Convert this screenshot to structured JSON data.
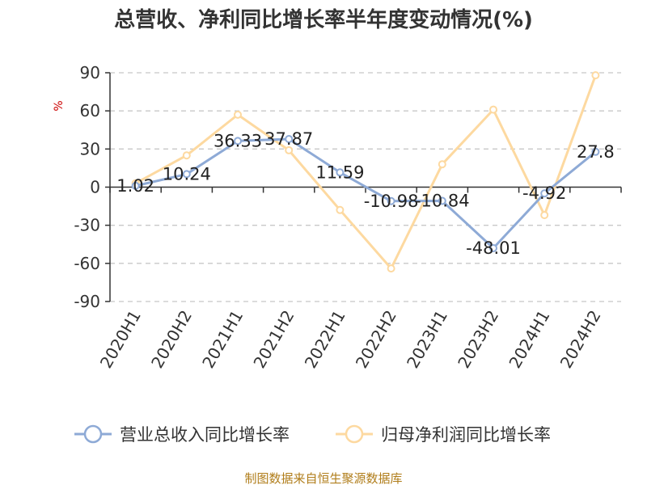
{
  "chart_data": {
    "type": "line",
    "title": "总营收、净利同比增长率半年度变动情况(%)",
    "ylabel": "%",
    "categories": [
      "2020H1",
      "2020H2",
      "2021H1",
      "2021H2",
      "2022H1",
      "2022H2",
      "2023H1",
      "2023H2",
      "2024H1",
      "2024H2"
    ],
    "y_ticks": [
      90,
      60,
      30,
      0,
      -30,
      -60,
      -90
    ],
    "ylim": [
      -90,
      90
    ],
    "grid": true,
    "legend_position": "bottom",
    "series": [
      {
        "name": "营业总收入同比增长率",
        "color": "#8eaad6",
        "values": [
          1.02,
          10.24,
          36.33,
          37.87,
          11.59,
          -10.98,
          -10.84,
          -48.01,
          -4.92,
          27.8
        ],
        "labels": [
          "1.02",
          "10.24",
          "36.33",
          "37.87",
          "11.59",
          "-10.98",
          "-10.84",
          "-48.01",
          "-4.92",
          "27.8"
        ]
      },
      {
        "name": "归母净利润同比增长率",
        "color": "#fdd9a0",
        "values": [
          3,
          25,
          57,
          29,
          -18,
          -64,
          18,
          61,
          -22,
          88
        ]
      }
    ],
    "source": "制图数据来自恒生聚源数据库"
  }
}
